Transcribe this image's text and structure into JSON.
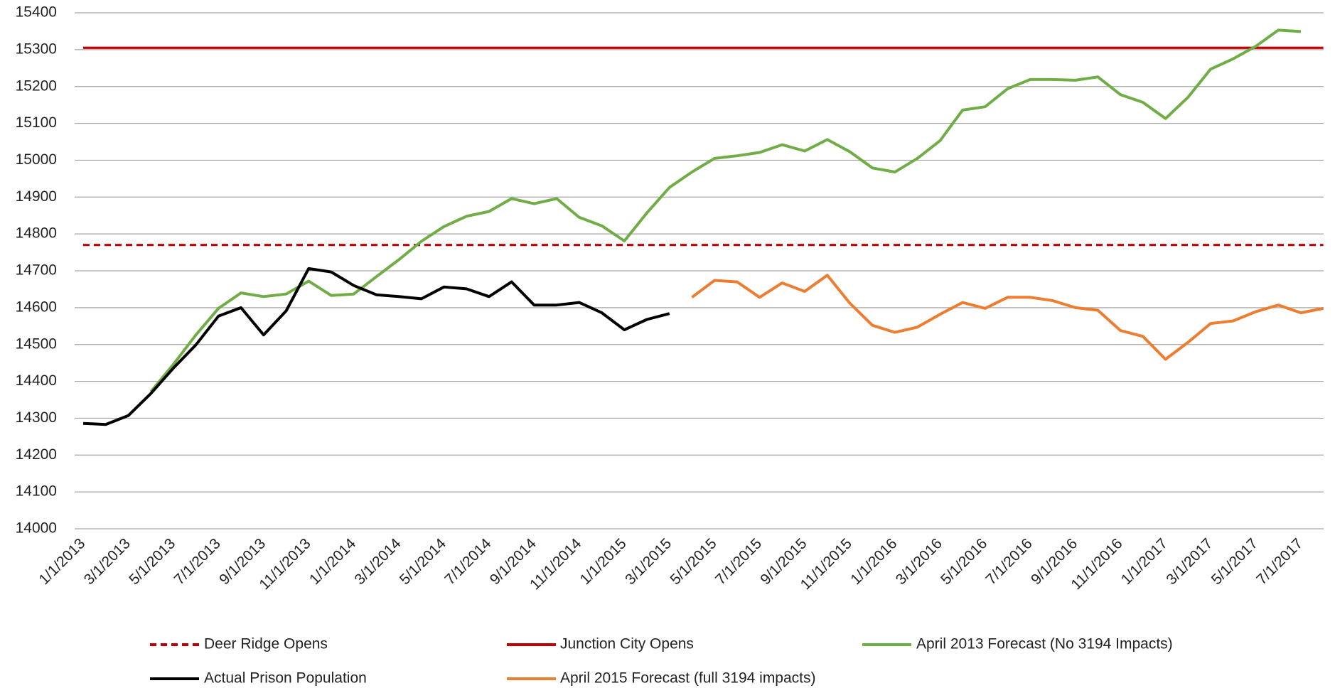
{
  "chart_data": {
    "type": "line",
    "categories": [
      "1/1/2013",
      null,
      "3/1/2013",
      null,
      "5/1/2013",
      null,
      "7/1/2013",
      null,
      "9/1/2013",
      null,
      "11/1/2013",
      null,
      "1/1/2014",
      null,
      "3/1/2014",
      null,
      "5/1/2014",
      null,
      "7/1/2014",
      null,
      "9/1/2014",
      null,
      "11/1/2014",
      null,
      "1/1/2015",
      null,
      "3/1/2015",
      null,
      "5/1/2015",
      null,
      "7/1/2015",
      null,
      "9/1/2015",
      null,
      "11/1/2015",
      null,
      "1/1/2016",
      null,
      "3/1/2016",
      null,
      "5/1/2016",
      null,
      "7/1/2016",
      null,
      "9/1/2016",
      null,
      "11/1/2016",
      null,
      "1/1/2017",
      null,
      "3/1/2017",
      null,
      "5/1/2017",
      null,
      "7/1/2017",
      null
    ],
    "ylim": [
      14000,
      15400
    ],
    "yticks": [
      14000,
      14100,
      14200,
      14300,
      14400,
      14500,
      14600,
      14700,
      14800,
      14900,
      15000,
      15100,
      15200,
      15300,
      15400
    ],
    "grid": true,
    "series": [
      {
        "name": "Deer Ridge Opens",
        "color": "#c00000",
        "dash": "dashed",
        "value": 14770
      },
      {
        "name": "Junction City Opens",
        "color": "#c00000",
        "dash": "solid",
        "value": 15305
      },
      {
        "name": "April 2013 Forecast (No 3194 Impacts)",
        "color": "#70ad47",
        "values": [
          null,
          null,
          null,
          14372,
          14446,
          14526,
          14598,
          14640,
          14630,
          14637,
          14672,
          14633,
          14637,
          14684,
          14730,
          14780,
          14820,
          14848,
          14861,
          14896,
          14882,
          14896,
          14845,
          14822,
          14781,
          14857,
          14926,
          14968,
          15005,
          15012,
          15021,
          15042,
          15025,
          15056,
          15023,
          14979,
          14968,
          15005,
          15053,
          15136,
          15145,
          15194,
          15219,
          15219,
          15217,
          15226,
          15178,
          15157,
          15113,
          15171,
          15247,
          15275,
          15309,
          15353,
          15349,
          null
        ]
      },
      {
        "name": "Actual Prison Population",
        "color": "#000000",
        "values": [
          14286,
          14283,
          14307,
          14367,
          14436,
          14499,
          14577,
          14600,
          14526,
          14591,
          14706,
          14697,
          14660,
          14635,
          14630,
          14624,
          14656,
          14651,
          14630,
          14670,
          14607,
          14607,
          14614,
          14586,
          14540,
          14568,
          14584,
          null,
          null,
          null,
          null,
          null,
          null,
          null,
          null,
          null,
          null,
          null,
          null,
          null,
          null,
          null,
          null,
          null,
          null,
          null,
          null,
          null,
          null,
          null,
          null,
          null,
          null,
          null,
          null,
          null
        ]
      },
      {
        "name": "April 2015 Forecast (full 3194 impacts)",
        "color": "#ed7d31",
        "values": [
          null,
          null,
          null,
          null,
          null,
          null,
          null,
          null,
          null,
          null,
          null,
          null,
          null,
          null,
          null,
          null,
          null,
          null,
          null,
          null,
          null,
          null,
          null,
          null,
          null,
          null,
          null,
          14628,
          14674,
          14670,
          14628,
          14667,
          14644,
          14688,
          14612,
          14552,
          14533,
          14547,
          14582,
          14614,
          14598,
          14628,
          14628,
          14619,
          14600,
          14593,
          14538,
          14522,
          14460,
          14506,
          14557,
          14564,
          14589,
          14607,
          14586,
          14598
        ]
      }
    ]
  }
}
